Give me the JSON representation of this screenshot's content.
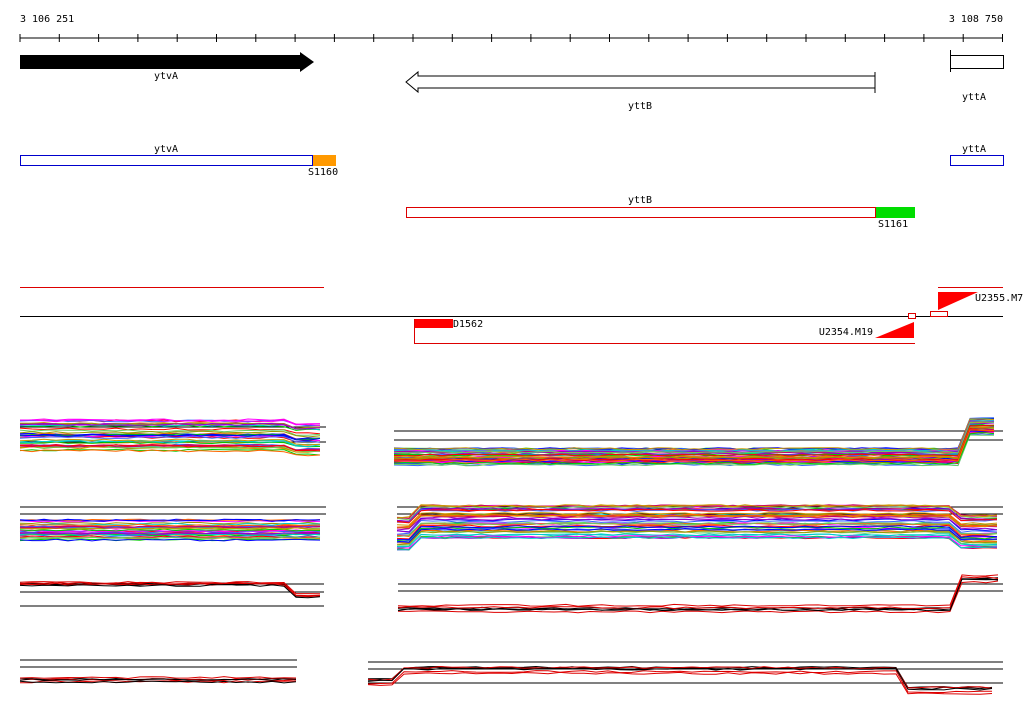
{
  "ruler": {
    "start": "3 106 251",
    "end": "3 108 750"
  },
  "genes": [
    {
      "label": "ytvA"
    },
    {
      "label": "yttB"
    },
    {
      "label": "yttA"
    }
  ],
  "transcripts": [
    {
      "label": "ytvA",
      "site": "S1160"
    },
    {
      "label": "yttB",
      "site": "S1161"
    },
    {
      "label": "yttA"
    }
  ],
  "features": [
    {
      "label": "D1562"
    },
    {
      "label": "U2354.M19"
    },
    {
      "label": "U2355.M7"
    }
  ]
}
